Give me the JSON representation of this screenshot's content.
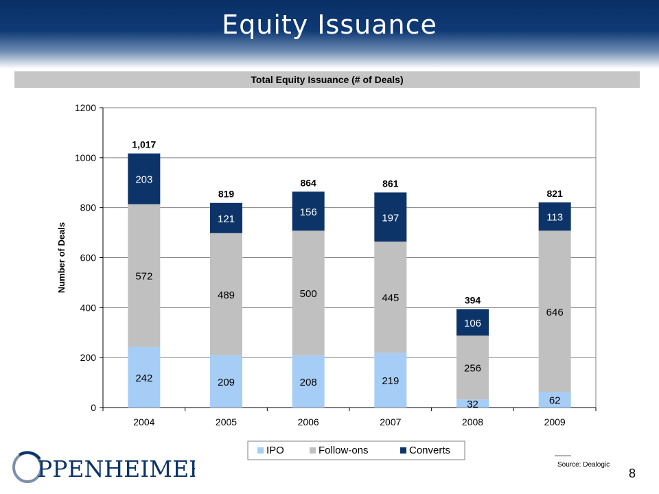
{
  "slide": {
    "title": "Equity Issuance",
    "page_number": "8",
    "source": "Source: Dealogic",
    "logo_text": "PPENHEIMER"
  },
  "colors": {
    "header": "#0a2f66",
    "ipo": "#a6cdf5",
    "followons": "#c0c0c0",
    "converts": "#0c3468",
    "title_bar": "#c6c6c6"
  },
  "chart_data": {
    "type": "bar",
    "stacked": true,
    "title": "Total Equity Issuance (# of Deals)",
    "xlabel": "",
    "ylabel": "Number of Deals",
    "ylim": [
      0,
      1200
    ],
    "yticks": [
      0,
      200,
      400,
      600,
      800,
      1000,
      1200
    ],
    "grid": true,
    "legend_position": "bottom",
    "categories": [
      "2004",
      "2005",
      "2006",
      "2007",
      "2008",
      "2009"
    ],
    "series": [
      {
        "name": "IPO",
        "values": [
          242,
          209,
          208,
          219,
          32,
          62
        ],
        "labels": [
          "242",
          "209",
          "208",
          "219",
          "32",
          "62"
        ]
      },
      {
        "name": "Follow-ons",
        "values": [
          572,
          489,
          500,
          445,
          256,
          646
        ],
        "labels": [
          "572",
          "489",
          "500",
          "445",
          "256",
          "646"
        ]
      },
      {
        "name": "Converts",
        "values": [
          203,
          121,
          156,
          197,
          106,
          113
        ],
        "labels": [
          "203",
          "121",
          "156",
          "197",
          "106",
          "113"
        ]
      }
    ],
    "totals": [
      "1,017",
      "819",
      "864",
      "861",
      "394",
      "821"
    ]
  }
}
